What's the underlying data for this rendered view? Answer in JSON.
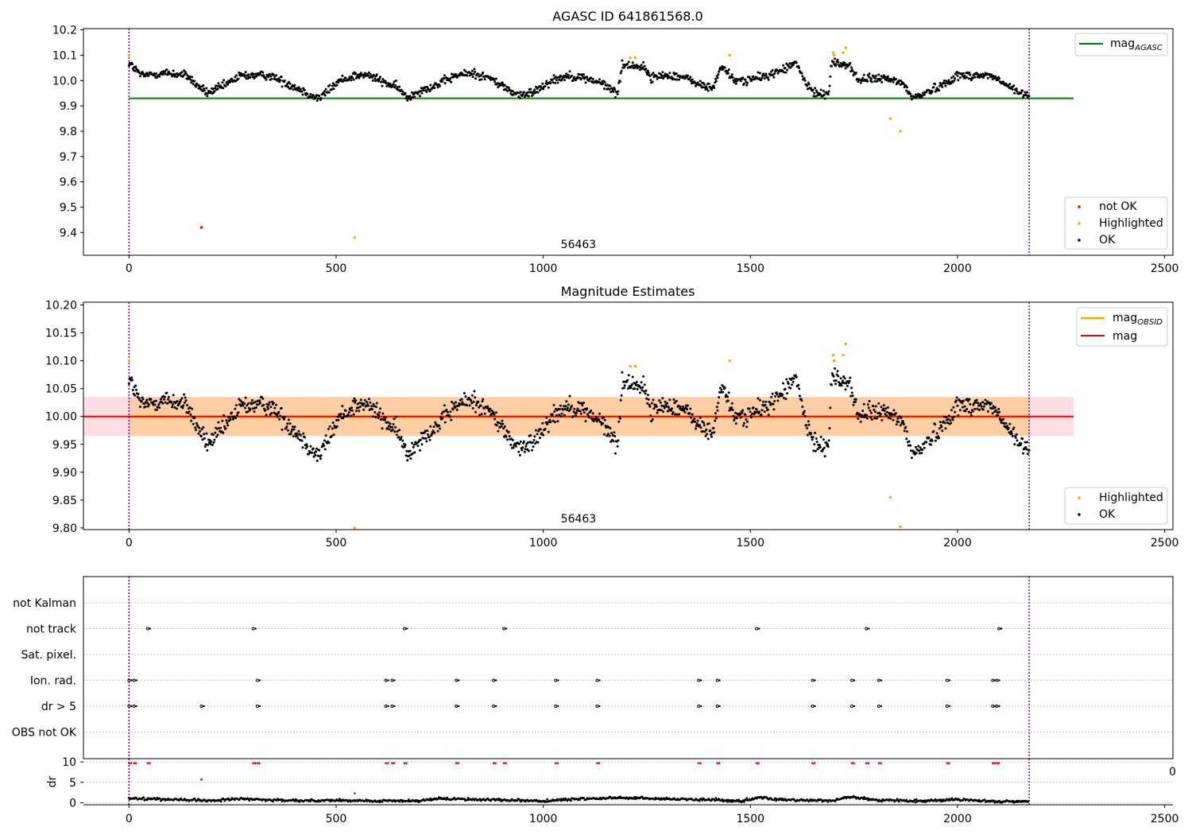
{
  "chart_data": [
    {
      "type": "scatter",
      "title": "AGASC ID 641861568.0",
      "xlim": [
        -110,
        2520
      ],
      "ylim": [
        9.31,
        10.205
      ],
      "xticks": [
        0,
        500,
        1000,
        1500,
        2000,
        2500
      ],
      "yticks": [
        9.4,
        9.5,
        9.6,
        9.7,
        9.8,
        9.9,
        10.0,
        10.1,
        10.2
      ],
      "ytick_labels": [
        "9.4",
        "9.5",
        "9.6",
        "9.7",
        "9.8",
        "9.9",
        "10.0",
        "10.1",
        "10.2"
      ],
      "obsid_label": "56463",
      "obsid_label_x": 1085,
      "vlines_x": [
        0,
        2173
      ],
      "mag_agasc": 9.93,
      "mag_agasc_range": [
        0,
        2280
      ],
      "legend_top": [
        "mag_AGASC"
      ],
      "legend_bottom": [
        "not OK",
        "Highlighted",
        "OK"
      ],
      "series": [
        {
          "name": "not OK",
          "color": "#ff0000",
          "x": [
            175
          ],
          "y": [
            9.42
          ]
        },
        {
          "name": "Highlighted",
          "color": "#ffa500",
          "x": [
            0,
            545,
            1210,
            1222,
            1450,
            1700,
            1702,
            1724,
            1730,
            1838,
            1862
          ],
          "y": [
            10.1,
            9.38,
            10.09,
            10.09,
            10.1,
            10.11,
            10.1,
            10.11,
            10.13,
            9.85,
            9.8
          ]
        }
      ],
      "ok_profile_x": [
        0,
        30,
        90,
        140,
        165,
        190,
        230,
        270,
        300,
        340,
        380,
        420,
        440,
        460,
        480,
        510,
        545,
        580,
        620,
        650,
        672,
        700,
        740,
        790,
        830,
        870,
        900,
        930,
        955,
        980,
        1020,
        1060,
        1100,
        1140,
        1170,
        1180,
        1190,
        1220,
        1245,
        1260,
        1290,
        1320,
        1360,
        1380,
        1410,
        1430,
        1460,
        1480,
        1520,
        1560,
        1600,
        1610,
        1640,
        1660,
        1690,
        1695,
        1740,
        1760,
        1800,
        1850,
        1875,
        1890,
        1920,
        1960,
        2000,
        2040,
        2080,
        2100,
        2130,
        2150,
        2173
      ],
      "ok_profile_y": [
        10.07,
        10.02,
        10.03,
        10.02,
        9.98,
        9.95,
        9.98,
        10.02,
        10.02,
        10.02,
        9.99,
        9.96,
        9.94,
        9.93,
        9.96,
        10.0,
        10.02,
        10.02,
        9.99,
        9.97,
        9.93,
        9.96,
        9.98,
        10.02,
        10.03,
        10.01,
        9.98,
        9.95,
        9.94,
        9.96,
        10.0,
        10.02,
        10.01,
        9.99,
        9.96,
        9.95,
        10.06,
        10.06,
        10.05,
        10.01,
        10.02,
        10.02,
        10.0,
        9.98,
        9.97,
        10.06,
        10.0,
        10.0,
        10.01,
        10.03,
        10.06,
        10.07,
        9.97,
        9.95,
        9.95,
        10.07,
        10.06,
        10.0,
        10.01,
        10.0,
        9.98,
        9.93,
        9.95,
        9.98,
        10.02,
        10.02,
        10.02,
        10.0,
        9.97,
        9.95,
        9.94
      ],
      "ok_noise": 0.012
    },
    {
      "type": "scatter",
      "title": "Magnitude Estimates",
      "xlim": [
        -110,
        2520
      ],
      "ylim": [
        9.797,
        10.205
      ],
      "xticks": [
        0,
        500,
        1000,
        1500,
        2000,
        2500
      ],
      "yticks": [
        9.8,
        9.85,
        9.9,
        9.95,
        10.0,
        10.05,
        10.1,
        10.15,
        10.2
      ],
      "ytick_labels": [
        "9.80",
        "9.85",
        "9.90",
        "9.95",
        "10.00",
        "10.05",
        "10.10",
        "10.15",
        "10.20"
      ],
      "obsid_label": "56463",
      "obsid_label_x": 1085,
      "vlines_x": [
        0,
        2173
      ],
      "mag": 10.0,
      "mag_obsid": 10.0,
      "band_pink": [
        9.965,
        10.035
      ],
      "band_pink_range": [
        -110,
        2280
      ],
      "band_orange": [
        9.965,
        10.035
      ],
      "band_orange_range": [
        0,
        2173
      ],
      "legend_top": [
        "mag_OBSID",
        "mag"
      ],
      "legend_bottom": [
        "Highlighted",
        "OK"
      ],
      "series": [
        {
          "name": "Highlighted",
          "color": "#ffa500",
          "x": [
            0,
            545,
            1210,
            1222,
            1450,
            1700,
            1702,
            1724,
            1730,
            1838,
            1862
          ],
          "y": [
            10.1,
            9.8,
            10.09,
            10.09,
            10.1,
            10.11,
            10.1,
            10.11,
            10.13,
            9.855,
            9.802
          ]
        }
      ]
    },
    {
      "type": "scatter",
      "xlim": [
        -110,
        2520
      ],
      "categories": [
        "not Kalman",
        "not track",
        "Sat. pixel.",
        "Ion. rad.",
        "dr > 5",
        "OBS not OK"
      ],
      "vlines_x": [
        0,
        2173
      ],
      "flags": {
        "not track": [
          45,
          300,
          665,
          905,
          1515,
          1780,
          2100
        ],
        "Ion. rad.": [
          0,
          12,
          310,
          620,
          635,
          790,
          880,
          1030,
          1130,
          1375,
          1420,
          1650,
          1745,
          1810,
          1975,
          2085,
          2095
        ],
        "dr > 5": [
          0,
          12,
          175,
          310,
          620,
          635,
          790,
          880,
          1030,
          1130,
          1375,
          1420,
          1650,
          1745,
          1810,
          1975,
          2085,
          2095
        ]
      }
    },
    {
      "type": "scatter",
      "ylabel": "dr",
      "xlim": [
        -110,
        2520
      ],
      "ylim": [
        -0.5,
        10.8
      ],
      "xticks": [
        0,
        500,
        1000,
        1500,
        2000,
        2500
      ],
      "xtick_labels": [
        "0",
        "500",
        "1000",
        "1500",
        "2000",
        "2500"
      ],
      "yticks": [
        0,
        5,
        10
      ],
      "ytick_labels": [
        "0",
        "5",
        "10"
      ],
      "vlines_x": [
        0,
        2173
      ],
      "high_dr_x": [
        0,
        12,
        45,
        300,
        310,
        620,
        635,
        665,
        790,
        880,
        905,
        1030,
        1130,
        1375,
        1420,
        1515,
        1650,
        1745,
        1780,
        1810,
        1975,
        2085,
        2095
      ],
      "high_dr_y": 9.7,
      "mid_dr": [
        {
          "x": 175,
          "y": 5.7
        },
        {
          "x": 545,
          "y": 2.3
        }
      ],
      "baseline_profile_x": [
        0,
        120,
        200,
        260,
        380,
        520,
        600,
        700,
        760,
        900,
        1000,
        1080,
        1180,
        1260,
        1420,
        1480,
        1520,
        1560,
        1700,
        1740,
        1800,
        1900,
        2000,
        2100,
        2173
      ],
      "baseline_profile_y": [
        1.0,
        0.8,
        0.5,
        1.0,
        0.5,
        0.6,
        0.4,
        0.5,
        1.0,
        0.7,
        0.4,
        0.9,
        1.2,
        1.0,
        0.7,
        0.3,
        1.3,
        0.8,
        0.5,
        1.4,
        0.7,
        0.4,
        0.8,
        0.3,
        0.3
      ],
      "tick_label_truncated": "0"
    }
  ]
}
